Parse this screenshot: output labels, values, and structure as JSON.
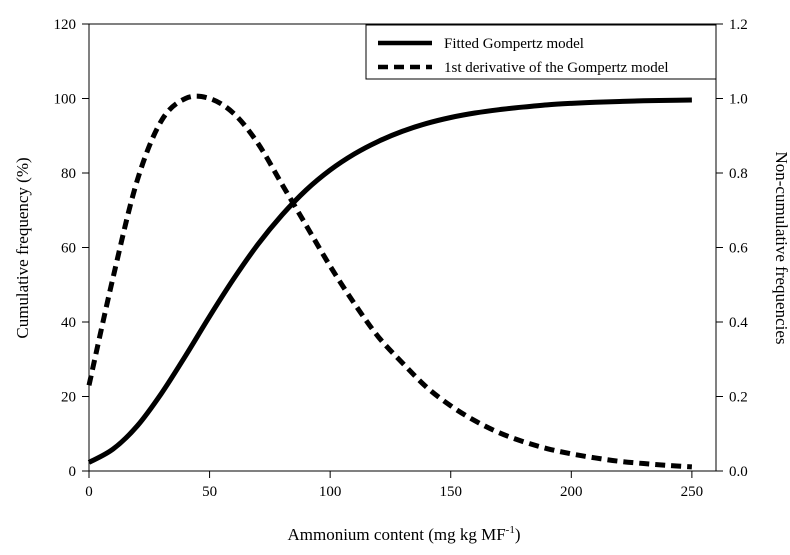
{
  "chart_data": {
    "type": "line",
    "title": "",
    "xlabel": "Ammonium content (mg kg  MF",
    "xlabel_superscript": "-1",
    "xlabel_suffix": ")",
    "ylabel_left": "Cumulative frequency (%)",
    "ylabel_right": "Non-cumulative frequencies",
    "xlim": [
      0,
      260
    ],
    "ylim_left": [
      0,
      120
    ],
    "ylim_right": [
      0,
      1.2
    ],
    "x_ticks": [
      "0",
      "50",
      "100",
      "150",
      "200",
      "250"
    ],
    "y_left_ticks": [
      "0",
      "20",
      "40",
      "60",
      "80",
      "100",
      "120"
    ],
    "y_right_ticks": [
      "0.0",
      "0.2",
      "0.4",
      "0.6",
      "0.8",
      "1.0",
      "1.2"
    ],
    "grid": false,
    "legend_position": "top-right",
    "series": [
      {
        "name": "Fitted Gompertz model",
        "axis": "left",
        "style": "solid",
        "color": "#000000",
        "x": [
          0,
          10,
          20,
          30,
          40,
          50,
          60,
          70,
          80,
          90,
          100,
          110,
          120,
          130,
          140,
          150,
          160,
          170,
          180,
          190,
          200,
          210,
          220,
          230,
          240,
          250
        ],
        "y": [
          2.3,
          5.9,
          12.1,
          20.8,
          30.9,
          41.5,
          51.6,
          60.8,
          68.7,
          75.4,
          80.8,
          85.1,
          88.5,
          91.2,
          93.3,
          94.9,
          96.1,
          97.0,
          97.7,
          98.3,
          98.7,
          99.0,
          99.2,
          99.4,
          99.5,
          99.6
        ]
      },
      {
        "name": "1st derivative of the Gompertz model",
        "axis": "right",
        "style": "dashed",
        "color": "#000000",
        "x": [
          0,
          10,
          20,
          30,
          40,
          50,
          60,
          70,
          80,
          90,
          100,
          110,
          120,
          130,
          140,
          150,
          160,
          170,
          180,
          190,
          200,
          210,
          220,
          230,
          240,
          250
        ],
        "y": [
          0.23,
          0.52,
          0.78,
          0.94,
          1.0,
          1.0,
          0.96,
          0.88,
          0.77,
          0.66,
          0.55,
          0.45,
          0.36,
          0.29,
          0.225,
          0.175,
          0.135,
          0.103,
          0.079,
          0.06,
          0.046,
          0.035,
          0.026,
          0.02,
          0.015,
          0.011
        ]
      }
    ]
  }
}
